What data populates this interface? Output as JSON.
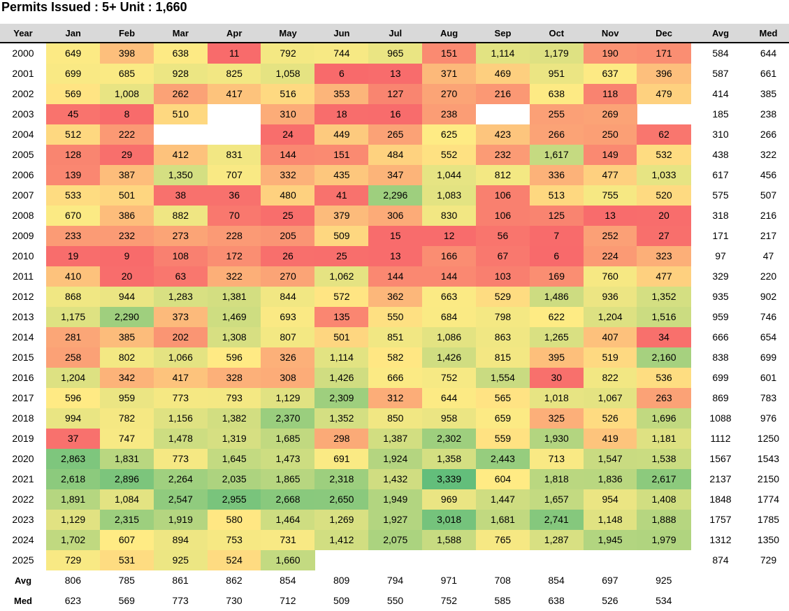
{
  "title": "Permits Issued : 5+ Unit : 1,660",
  "columns": {
    "year": "Year",
    "months": [
      "Jan",
      "Feb",
      "Mar",
      "Apr",
      "May",
      "Jun",
      "Jul",
      "Aug",
      "Sep",
      "Oct",
      "Nov",
      "Dec"
    ],
    "avg": "Avg",
    "med": "Med"
  },
  "row_labels": {
    "avg": "Avg",
    "med": "Med"
  },
  "chart_data": {
    "type": "heatmap",
    "title": "Permits Issued : 5+ Unit : 1,660",
    "x": [
      "Jan",
      "Feb",
      "Mar",
      "Apr",
      "May",
      "Jun",
      "Jul",
      "Aug",
      "Sep",
      "Oct",
      "Nov",
      "Dec"
    ],
    "y": [
      "2000",
      "2001",
      "2002",
      "2003",
      "2004",
      "2005",
      "2006",
      "2007",
      "2008",
      "2009",
      "2010",
      "2011",
      "2012",
      "2013",
      "2014",
      "2015",
      "2016",
      "2017",
      "2018",
      "2019",
      "2020",
      "2021",
      "2022",
      "2023",
      "2024",
      "2025"
    ],
    "values": [
      [
        649,
        398,
        638,
        11,
        792,
        744,
        965,
        151,
        1114,
        1179,
        190,
        171
      ],
      [
        699,
        685,
        928,
        825,
        1058,
        6,
        13,
        371,
        469,
        951,
        637,
        396
      ],
      [
        569,
        1008,
        262,
        417,
        516,
        353,
        127,
        270,
        216,
        638,
        118,
        479
      ],
      [
        45,
        8,
        510,
        null,
        310,
        18,
        16,
        238,
        null,
        255,
        269,
        null
      ],
      [
        512,
        222,
        null,
        null,
        24,
        449,
        265,
        625,
        423,
        266,
        250,
        62
      ],
      [
        128,
        29,
        412,
        831,
        144,
        151,
        484,
        552,
        232,
        1617,
        149,
        532
      ],
      [
        139,
        387,
        1350,
        707,
        332,
        435,
        347,
        1044,
        812,
        336,
        477,
        1033
      ],
      [
        533,
        501,
        38,
        36,
        480,
        41,
        2296,
        1083,
        106,
        513,
        755,
        520
      ],
      [
        670,
        386,
        882,
        70,
        25,
        379,
        306,
        830,
        106,
        125,
        13,
        20
      ],
      [
        233,
        232,
        273,
        228,
        205,
        509,
        15,
        12,
        56,
        7,
        252,
        27
      ],
      [
        19,
        9,
        108,
        172,
        26,
        25,
        13,
        166,
        67,
        6,
        224,
        323
      ],
      [
        410,
        20,
        63,
        322,
        270,
        1062,
        144,
        144,
        103,
        169,
        760,
        477
      ],
      [
        868,
        944,
        1283,
        1381,
        844,
        572,
        362,
        663,
        529,
        1486,
        936,
        1352
      ],
      [
        1175,
        2290,
        373,
        1469,
        693,
        135,
        550,
        684,
        798,
        622,
        1204,
        1516
      ],
      [
        281,
        385,
        202,
        1308,
        807,
        501,
        851,
        1086,
        863,
        1265,
        407,
        34
      ],
      [
        258,
        802,
        1066,
        596,
        326,
        1114,
        582,
        1426,
        815,
        395,
        519,
        2160
      ],
      [
        1204,
        342,
        417,
        328,
        308,
        1426,
        666,
        752,
        1554,
        30,
        822,
        536
      ],
      [
        596,
        959,
        773,
        793,
        1129,
        2309,
        312,
        644,
        565,
        1018,
        1067,
        263
      ],
      [
        994,
        782,
        1156,
        1382,
        2370,
        1352,
        850,
        958,
        659,
        325,
        526,
        1696
      ],
      [
        37,
        747,
        1478,
        1319,
        1685,
        298,
        1387,
        2302,
        559,
        1930,
        419,
        1181
      ],
      [
        2863,
        1831,
        773,
        1645,
        1473,
        691,
        1924,
        1358,
        2443,
        713,
        1547,
        1538
      ],
      [
        2618,
        2896,
        2264,
        2035,
        1865,
        2318,
        1432,
        3339,
        604,
        1818,
        1836,
        2617
      ],
      [
        1891,
        1084,
        2547,
        2955,
        2668,
        2650,
        1949,
        969,
        1447,
        1657,
        954,
        1408
      ],
      [
        1129,
        2315,
        1919,
        580,
        1464,
        1269,
        1927,
        3018,
        1681,
        2741,
        1148,
        1888
      ],
      [
        1702,
        607,
        894,
        753,
        731,
        1412,
        2075,
        1588,
        765,
        1287,
        1945,
        1979
      ],
      [
        729,
        531,
        925,
        524,
        1660,
        null,
        null,
        null,
        null,
        null,
        null,
        null
      ]
    ],
    "row_avg": [
      584,
      587,
      414,
      185,
      310,
      438,
      617,
      575,
      318,
      171,
      97,
      329,
      935,
      959,
      666,
      838,
      699,
      869,
      1088,
      1112,
      1567,
      2137,
      1848,
      1757,
      1312,
      874
    ],
    "row_med": [
      644,
      661,
      385,
      238,
      266,
      322,
      456,
      507,
      216,
      217,
      47,
      220,
      902,
      746,
      654,
      699,
      601,
      783,
      976,
      1250,
      1543,
      2150,
      1774,
      1785,
      1350,
      729
    ],
    "col_avg": [
      806,
      785,
      861,
      862,
      854,
      809,
      794,
      971,
      708,
      854,
      697,
      925
    ],
    "col_med": [
      623,
      569,
      773,
      730,
      712,
      509,
      550,
      752,
      585,
      638,
      526,
      534
    ],
    "color_scale": {
      "low": "#f8696b",
      "mid": "#ffeb84",
      "high": "#63be7b",
      "mid_value": 600,
      "max_value": 3339
    }
  }
}
